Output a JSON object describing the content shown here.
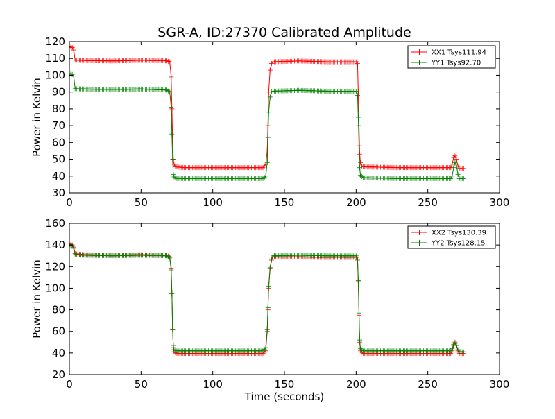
{
  "figure_title": "SGR-A, ID:27370 Calibrated Amplitude",
  "colors": {
    "xx": "#ff0000",
    "yy": "#008000"
  },
  "chart_data": [
    {
      "type": "line",
      "marker": "plus",
      "xlabel": "",
      "ylabel": "Power in Kelvin",
      "xlim": [
        0,
        300
      ],
      "ylim": [
        30,
        120
      ],
      "xticks": [
        0,
        50,
        100,
        150,
        200,
        250,
        300
      ],
      "yticks": [
        30,
        40,
        50,
        60,
        70,
        80,
        90,
        100,
        110,
        120
      ],
      "grid": false,
      "legend_position": "top-right",
      "series": [
        {
          "name": "XX1 Tsys111.94",
          "color": "#ff0000",
          "points": [
            [
              0,
              117
            ],
            [
              2,
              116.5
            ],
            [
              3,
              115
            ],
            [
              4,
              109
            ],
            [
              10,
              108.8
            ],
            [
              30,
              108.5
            ],
            [
              50,
              108.9
            ],
            [
              68,
              108.6
            ],
            [
              70,
              108
            ],
            [
              71,
              99
            ],
            [
              71.5,
              80
            ],
            [
              72,
              62
            ],
            [
              72.5,
              50
            ],
            [
              73,
              47
            ],
            [
              74,
              45.5
            ],
            [
              80,
              45
            ],
            [
              100,
              45
            ],
            [
              120,
              45
            ],
            [
              135,
              45
            ],
            [
              137,
              47
            ],
            [
              138,
              55
            ],
            [
              138.5,
              70
            ],
            [
              139,
              90
            ],
            [
              140,
              103
            ],
            [
              141,
              107
            ],
            [
              142,
              108
            ],
            [
              160,
              108.5
            ],
            [
              180,
              108
            ],
            [
              200,
              108
            ],
            [
              201,
              107
            ],
            [
              201.5,
              90
            ],
            [
              202,
              70
            ],
            [
              202.5,
              53
            ],
            [
              203,
              48
            ],
            [
              204,
              46
            ],
            [
              205,
              45.5
            ],
            [
              230,
              45
            ],
            [
              260,
              45
            ],
            [
              266,
              45
            ],
            [
              267,
              47
            ],
            [
              268,
              51
            ],
            [
              269,
              52
            ],
            [
              270,
              50
            ],
            [
              271,
              46
            ],
            [
              272,
              44.5
            ],
            [
              275,
              44.5
            ]
          ]
        },
        {
          "name": "YY1 Tsys92.70",
          "color": "#008000",
          "points": [
            [
              0,
              101
            ],
            [
              2,
              100.5
            ],
            [
              3,
              99.5
            ],
            [
              4,
              92
            ],
            [
              10,
              91.8
            ],
            [
              30,
              91.5
            ],
            [
              50,
              91.8
            ],
            [
              68,
              91.2
            ],
            [
              70,
              90
            ],
            [
              71,
              81
            ],
            [
              71.5,
              65
            ],
            [
              72,
              50
            ],
            [
              72.5,
              41
            ],
            [
              73,
              39.5
            ],
            [
              75,
              38.5
            ],
            [
              100,
              38.5
            ],
            [
              120,
              38.5
            ],
            [
              135,
              38.5
            ],
            [
              137,
              40
            ],
            [
              138,
              48
            ],
            [
              138.5,
              63
            ],
            [
              139,
              78
            ],
            [
              140,
              87
            ],
            [
              141,
              90
            ],
            [
              142,
              90.5
            ],
            [
              160,
              91
            ],
            [
              180,
              90.5
            ],
            [
              200,
              90.5
            ],
            [
              201,
              88
            ],
            [
              201.5,
              75
            ],
            [
              202,
              58
            ],
            [
              202.5,
              45
            ],
            [
              203,
              40.5
            ],
            [
              205,
              39
            ],
            [
              230,
              38.5
            ],
            [
              260,
              38.5
            ],
            [
              266,
              38.5
            ],
            [
              267,
              40
            ],
            [
              268,
              45
            ],
            [
              269,
              48
            ],
            [
              270,
              46
            ],
            [
              271,
              41
            ],
            [
              272,
              38.5
            ],
            [
              275,
              38.5
            ]
          ]
        }
      ]
    },
    {
      "type": "line",
      "marker": "plus",
      "xlabel": "Time (seconds)",
      "ylabel": "Power in Kelvin",
      "xlim": [
        0,
        300
      ],
      "ylim": [
        20,
        160
      ],
      "xticks": [
        0,
        50,
        100,
        150,
        200,
        250,
        300
      ],
      "yticks": [
        20,
        40,
        60,
        80,
        100,
        120,
        140,
        160
      ],
      "grid": false,
      "legend_position": "top-right",
      "series": [
        {
          "name": "XX2 Tsys130.39",
          "color": "#ff0000",
          "points": [
            [
              0,
              141
            ],
            [
              2,
              140
            ],
            [
              3,
              138
            ],
            [
              4,
              132
            ],
            [
              10,
              131
            ],
            [
              30,
              130.5
            ],
            [
              50,
              131
            ],
            [
              68,
              130.5
            ],
            [
              70,
              129
            ],
            [
              71,
              118
            ],
            [
              71.5,
              95
            ],
            [
              72,
              62
            ],
            [
              72.5,
              45
            ],
            [
              73,
              41
            ],
            [
              75,
              39.5
            ],
            [
              100,
              39.5
            ],
            [
              120,
              39.5
            ],
            [
              135,
              39.5
            ],
            [
              137,
              42
            ],
            [
              138,
              60
            ],
            [
              138.5,
              80
            ],
            [
              139,
              100
            ],
            [
              140,
              118
            ],
            [
              141,
              126
            ],
            [
              142,
              129
            ],
            [
              160,
              129
            ],
            [
              180,
              128.5
            ],
            [
              200,
              128.5
            ],
            [
              201,
              126
            ],
            [
              201.5,
              106
            ],
            [
              202,
              75
            ],
            [
              202.5,
              50
            ],
            [
              203,
              42
            ],
            [
              205,
              39.5
            ],
            [
              230,
              39.5
            ],
            [
              260,
              39.5
            ],
            [
              266,
              39.5
            ],
            [
              267,
              42
            ],
            [
              268,
              47
            ],
            [
              269,
              50
            ],
            [
              270,
              47
            ],
            [
              271,
              42
            ],
            [
              272,
              39.5
            ],
            [
              275,
              39.5
            ]
          ]
        },
        {
          "name": "YY2 Tsys128.15",
          "color": "#008000",
          "points": [
            [
              0,
              140
            ],
            [
              2,
              139
            ],
            [
              3,
              137
            ],
            [
              4,
              131
            ],
            [
              10,
              130.5
            ],
            [
              30,
              130
            ],
            [
              50,
              130.5
            ],
            [
              68,
              130
            ],
            [
              70,
              128
            ],
            [
              71,
              117
            ],
            [
              71.5,
              95
            ],
            [
              72,
              62
            ],
            [
              72.5,
              47
            ],
            [
              73,
              43
            ],
            [
              75,
              42
            ],
            [
              100,
              42
            ],
            [
              120,
              42
            ],
            [
              135,
              42
            ],
            [
              137,
              45
            ],
            [
              138,
              62
            ],
            [
              138.5,
              82
            ],
            [
              139,
              102
            ],
            [
              140,
              119
            ],
            [
              141,
              127
            ],
            [
              142,
              130
            ],
            [
              160,
              130.5
            ],
            [
              180,
              130
            ],
            [
              200,
              130
            ],
            [
              201,
              127
            ],
            [
              201.5,
              107
            ],
            [
              202,
              77
            ],
            [
              202.5,
              52
            ],
            [
              203,
              44
            ],
            [
              205,
              42
            ],
            [
              230,
              42
            ],
            [
              260,
              42
            ],
            [
              266,
              42
            ],
            [
              267,
              44
            ],
            [
              268,
              48
            ],
            [
              269,
              49
            ],
            [
              270,
              47
            ],
            [
              271,
              43
            ],
            [
              272,
              41
            ],
            [
              275,
              41
            ]
          ]
        }
      ]
    }
  ]
}
